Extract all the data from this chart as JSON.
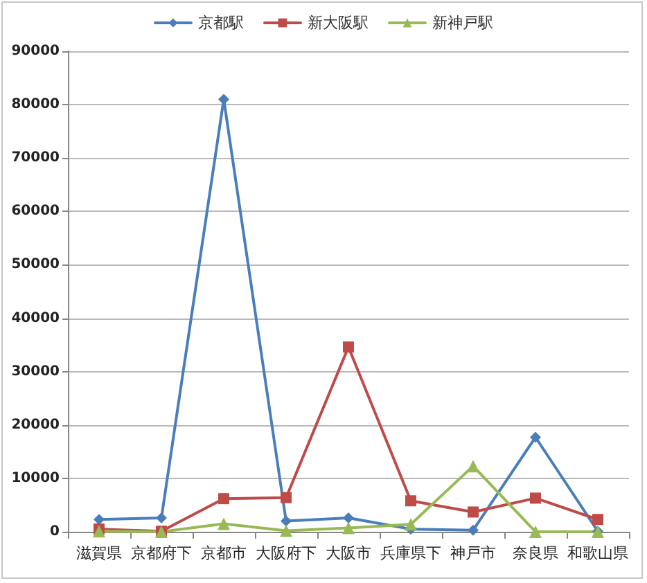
{
  "chart_data": {
    "type": "line",
    "categories": [
      "滋賀県",
      "京都府下",
      "京都市",
      "大阪府下",
      "大阪市",
      "兵庫県下",
      "神戸市",
      "奈良県",
      "和歌山県"
    ],
    "series": [
      {
        "name": "京都駅",
        "color": "#4a7ebb",
        "marker": "diamond",
        "values": [
          2300,
          2600,
          81000,
          2000,
          2600,
          500,
          300,
          17700,
          100
        ]
      },
      {
        "name": "新大阪駅",
        "color": "#be4b48",
        "marker": "square",
        "values": [
          500,
          100,
          6200,
          6400,
          34600,
          5800,
          3700,
          6300,
          2300
        ]
      },
      {
        "name": "新神戸駅",
        "color": "#98b954",
        "marker": "triangle",
        "values": [
          100,
          0,
          1500,
          200,
          700,
          1400,
          12300,
          0,
          0
        ]
      }
    ],
    "ylim": [
      0,
      90000
    ],
    "yticks": [
      0,
      10000,
      20000,
      30000,
      40000,
      50000,
      60000,
      70000,
      80000,
      90000
    ],
    "grid": "y",
    "legend": "top"
  }
}
